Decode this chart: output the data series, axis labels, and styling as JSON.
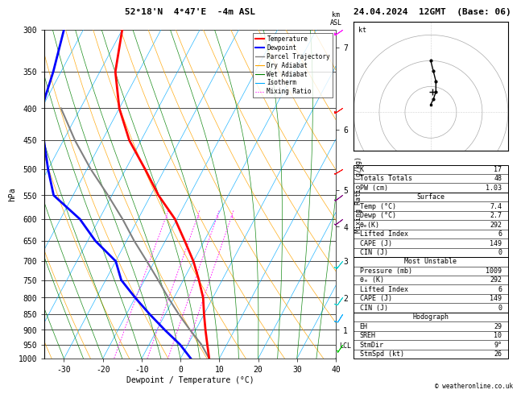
{
  "title_left": "52°18'N  4°47'E  -4m ASL",
  "title_right": "24.04.2024  12GMT  (Base: 06)",
  "xlabel": "Dewpoint / Temperature (°C)",
  "ylabel_left": "hPa",
  "bg_color": "#ffffff",
  "pressure_ticks": [
    300,
    350,
    400,
    450,
    500,
    550,
    600,
    650,
    700,
    750,
    800,
    850,
    900,
    950,
    1000
  ],
  "temp_range": [
    -35,
    40
  ],
  "temp_ticks": [
    -30,
    -20,
    -10,
    0,
    10,
    20,
    30,
    40
  ],
  "sounding_temp_p": [
    1000,
    950,
    900,
    850,
    800,
    750,
    700,
    650,
    600,
    550,
    500,
    450,
    400,
    350,
    300
  ],
  "sounding_temp_t": [
    7.4,
    5.0,
    2.5,
    0.0,
    -2.5,
    -6.0,
    -10.0,
    -15.0,
    -20.5,
    -28.0,
    -35.0,
    -43.0,
    -50.0,
    -56.0,
    -60.0
  ],
  "sounding_dewp_p": [
    1000,
    950,
    900,
    850,
    800,
    750,
    700,
    650,
    600,
    550,
    500,
    450,
    400,
    350,
    300
  ],
  "sounding_dewp_t": [
    2.7,
    -2.0,
    -8.0,
    -14.0,
    -20.0,
    -26.0,
    -30.0,
    -38.0,
    -45.0,
    -55.0,
    -60.0,
    -65.0,
    -70.0,
    -72.0,
    -75.0
  ],
  "parcel_p": [
    1000,
    950,
    900,
    850,
    800,
    750,
    700,
    650,
    600,
    550,
    500,
    450,
    400
  ],
  "parcel_t": [
    7.4,
    3.5,
    -1.5,
    -6.5,
    -11.5,
    -16.5,
    -22.0,
    -28.0,
    -34.0,
    -41.0,
    -49.0,
    -57.0,
    -65.0
  ],
  "temp_color": "#ff0000",
  "dewp_color": "#0000ff",
  "parcel_color": "#808080",
  "dry_adiabat_color": "#ffa500",
  "wet_adiabat_color": "#008000",
  "isotherm_color": "#00aaff",
  "mixing_ratio_color": "#ff00ff",
  "lcl_p": 955,
  "km_vals": [
    1,
    2,
    3,
    4,
    5,
    6,
    7
  ],
  "km_pressures": [
    900,
    800,
    700,
    617,
    540,
    432,
    320
  ],
  "copyright": "© weatheronline.co.uk",
  "hodo_circles": [
    10,
    20,
    30
  ],
  "p_min": 300,
  "p_max": 1000,
  "skew_factor": 45.0
}
